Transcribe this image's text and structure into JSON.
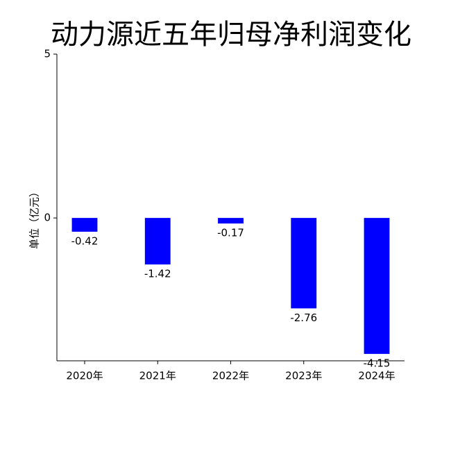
{
  "chart_data": {
    "type": "bar",
    "title": "动力源近五年归母净利润变化",
    "ylabel": "单位（亿元）",
    "categories": [
      "2020年",
      "2021年",
      "2022年",
      "2023年",
      "2024年"
    ],
    "values": [
      -0.42,
      -1.42,
      -0.17,
      -2.76,
      -4.15
    ],
    "color": "#0000ff",
    "ylim": [
      -4.36,
      5
    ],
    "yticks": [
      0,
      5
    ]
  }
}
